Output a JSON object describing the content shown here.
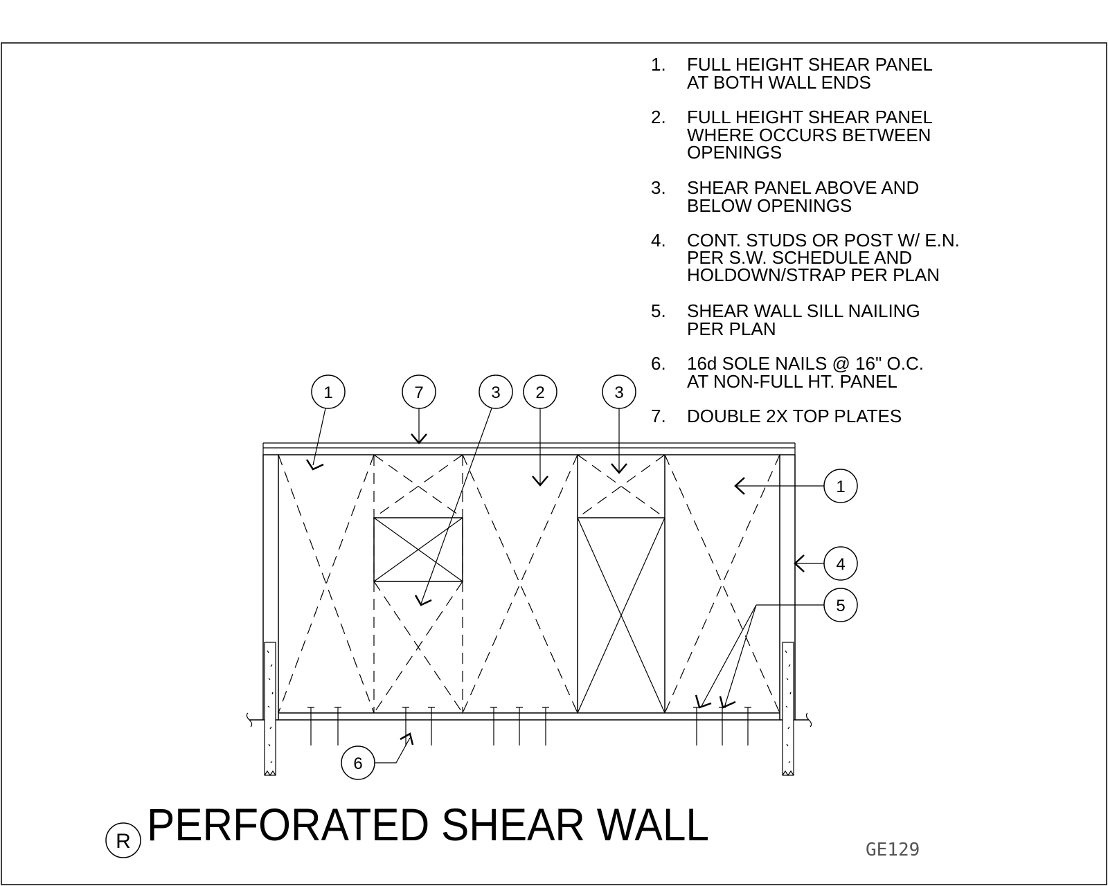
{
  "title": "PERFORATED SHEAR WALL",
  "detail_mark": "R",
  "drawing_code": "GE129",
  "notes": [
    {
      "num": "1.",
      "lines": [
        "FULL HEIGHT SHEAR PANEL",
        "AT BOTH WALL ENDS"
      ]
    },
    {
      "num": "2.",
      "lines": [
        "FULL HEIGHT SHEAR PANEL",
        "WHERE OCCURS BETWEEN",
        "OPENINGS"
      ]
    },
    {
      "num": "3.",
      "lines": [
        "SHEAR PANEL ABOVE AND",
        "BELOW OPENINGS"
      ]
    },
    {
      "num": "4.",
      "lines": [
        "CONT. STUDS OR POST W/ E.N.",
        "PER S.W. SCHEDULE AND",
        "HOLDOWN/STRAP PER PLAN"
      ]
    },
    {
      "num": "5.",
      "lines": [
        "SHEAR WALL SILL NAILING",
        "PER PLAN"
      ]
    },
    {
      "num": "6.",
      "lines": [
        "16d SOLE NAILS @ 16\" O.C.",
        "AT NON-FULL HT. PANEL"
      ]
    },
    {
      "num": "7.",
      "lines": [
        "DOUBLE 2X TOP PLATES"
      ]
    }
  ],
  "callouts": {
    "top_1": "1",
    "top_7": "7",
    "top_3a": "3",
    "top_2": "2",
    "top_3b": "3",
    "right_1": "1",
    "right_4": "4",
    "right_5": "5",
    "bottom_6": "6"
  }
}
